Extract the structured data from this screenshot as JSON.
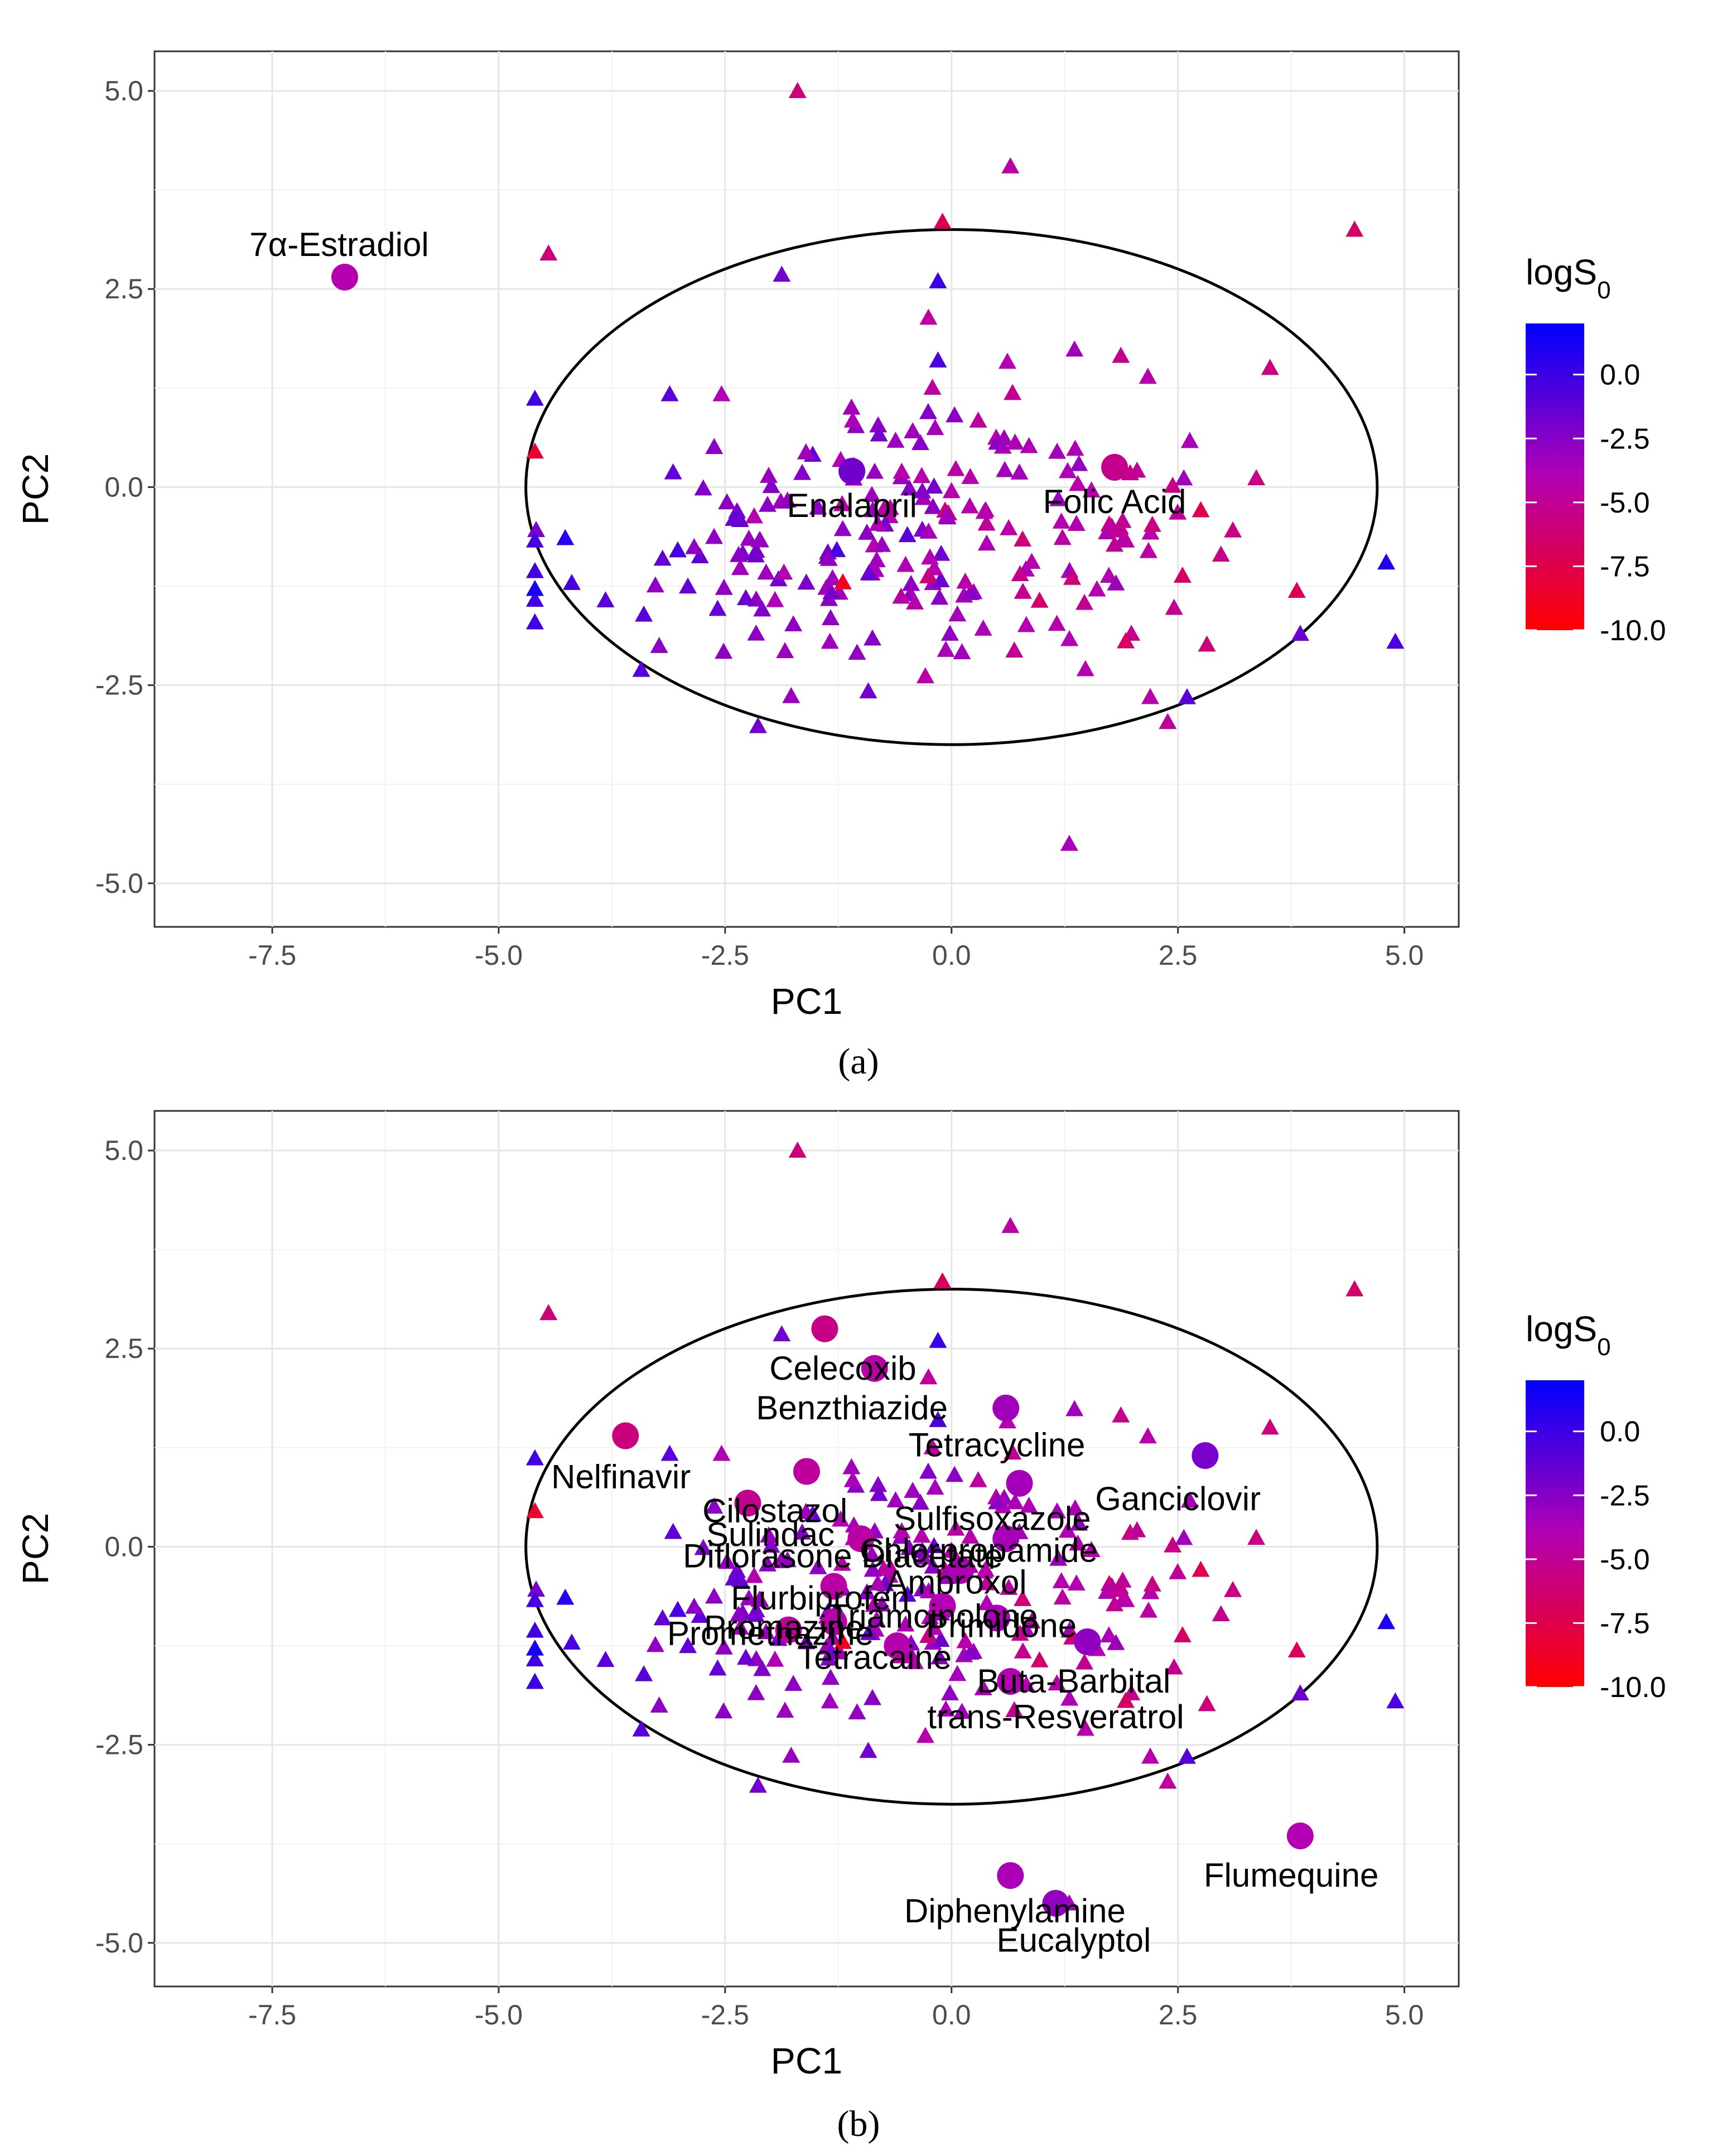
{
  "chart_data": [
    {
      "type": "scatter",
      "panel": "a",
      "caption": "(a)",
      "xlabel": "PC1",
      "ylabel": "PC2",
      "xlim": [
        -8.8,
        5.6
      ],
      "ylim": [
        -5.55,
        5.5
      ],
      "xticks": [
        -7.5,
        -5.0,
        -2.5,
        0.0,
        2.5,
        5.0
      ],
      "xtick_labels": [
        "-7.5",
        "-5.0",
        "-2.5",
        "0.0",
        "2.5",
        "5.0"
      ],
      "yticks": [
        -5.0,
        -2.5,
        0.0,
        2.5,
        5.0
      ],
      "ytick_labels": [
        "-5.0",
        "-2.5",
        "0.0",
        "2.5",
        "5.0"
      ],
      "ellipse": {
        "cx": 0.0,
        "cy": 0.0,
        "rx": 4.7,
        "ry": 3.25
      },
      "legend": {
        "title": "logS",
        "subscript": "0",
        "min": -10.0,
        "max": 2.0,
        "ticks": [
          0.0,
          -2.5,
          -5.0,
          -7.5,
          -10.0
        ],
        "tick_labels": [
          "0.0",
          "-2.5",
          "-5.0",
          "-7.5",
          "-10.0"
        ]
      },
      "colors": {
        "low": "#ff0000",
        "mid": "#b300b3",
        "high": "#0000ff"
      },
      "outliers": [
        {
          "label": "7α-Estradiol",
          "x": -6.7,
          "y": 2.65,
          "logS": -4.2,
          "label_pos": "above"
        },
        {
          "label": "Enalapril",
          "x": -1.1,
          "y": 0.2,
          "logS": -1.8,
          "label_pos": "below"
        },
        {
          "label": "Folic Acid",
          "x": 1.8,
          "y": 0.25,
          "logS": -5.3,
          "label_pos": "below"
        }
      ]
    },
    {
      "type": "scatter",
      "panel": "b",
      "caption": "(b)",
      "xlabel": "PC1",
      "ylabel": "PC2",
      "xlim": [
        -8.8,
        5.6
      ],
      "ylim": [
        -5.55,
        5.5
      ],
      "xticks": [
        -7.5,
        -5.0,
        -2.5,
        0.0,
        2.5,
        5.0
      ],
      "xtick_labels": [
        "-7.5",
        "-5.0",
        "-2.5",
        "0.0",
        "2.5",
        "5.0"
      ],
      "yticks": [
        -5.0,
        -2.5,
        0.0,
        2.5,
        5.0
      ],
      "ytick_labels": [
        "-5.0",
        "-2.5",
        "0.0",
        "2.5",
        "5.0"
      ],
      "ellipse": {
        "cx": 0.0,
        "cy": 0.0,
        "rx": 4.7,
        "ry": 3.25
      },
      "legend": {
        "title": "logS",
        "subscript": "0",
        "min": -10.0,
        "max": 2.0,
        "ticks": [
          0.0,
          -2.5,
          -5.0,
          -7.5,
          -10.0
        ],
        "tick_labels": [
          "0.0",
          "-2.5",
          "-5.0",
          "-7.5",
          "-10.0"
        ]
      },
      "colors": {
        "low": "#ff0000",
        "mid": "#b300b3",
        "high": "#0000ff"
      },
      "outliers": [
        {
          "label": "Celecoxib",
          "x": -1.4,
          "y": 2.75,
          "logS": -5.5,
          "lx": -1.2,
          "ly": 2.25
        },
        {
          "label": "Benzthiazide",
          "x": -0.85,
          "y": 2.25,
          "logS": -4.4,
          "lx": -1.1,
          "ly": 1.75
        },
        {
          "label": "Tetracycline",
          "x": 0.6,
          "y": 1.75,
          "logS": -3.4,
          "lx": 0.5,
          "ly": 1.28
        },
        {
          "label": "Nelfinavir",
          "x": -3.6,
          "y": 1.4,
          "logS": -5.8,
          "lx": -3.65,
          "ly": 0.88
        },
        {
          "label": "Ganciclovir",
          "x": 2.8,
          "y": 1.15,
          "logS": -2.1,
          "lx": 2.5,
          "ly": 0.6
        },
        {
          "label": "Cilostazol",
          "x": -2.25,
          "y": 0.55,
          "logS": -5.2,
          "lx": -1.95,
          "ly": 0.45
        },
        {
          "label": "Sulfisoxazole",
          "x": 0.75,
          "y": 0.8,
          "logS": -3.5,
          "lx": 0.45,
          "ly": 0.35
        },
        {
          "label": "Sulindac",
          "x": -1.6,
          "y": 0.95,
          "logS": -4.8,
          "lx": -2.0,
          "ly": 0.15
        },
        {
          "label": "Chlorpropamide",
          "x": 0.6,
          "y": 0.1,
          "logS": -3.6,
          "lx": 0.3,
          "ly": -0.05
        },
        {
          "label": "Diflorasone Diacetate",
          "x": -1.0,
          "y": 0.1,
          "logS": -4.6,
          "lx": -1.2,
          "ly": -0.12
        },
        {
          "label": "Ambroxol",
          "x": 0.1,
          "y": -0.3,
          "logS": -3.8,
          "lx": 0.05,
          "ly": -0.45
        },
        {
          "label": "Flurbiprofen",
          "x": -1.3,
          "y": -0.5,
          "logS": -4.5,
          "lx": -1.45,
          "ly": -0.65
        },
        {
          "label": "Triamcinolone",
          "x": -0.1,
          "y": -0.75,
          "logS": -4.0,
          "lx": -0.2,
          "ly": -0.88
        },
        {
          "label": "Primidone",
          "x": 0.5,
          "y": -0.9,
          "logS": -3.7,
          "lx": 0.55,
          "ly": -1.0
        },
        {
          "label": "Promazine",
          "x": -1.3,
          "y": -0.95,
          "logS": -4.4,
          "lx": -1.85,
          "ly": -1.02
        },
        {
          "label": "Promethazine",
          "x": -1.8,
          "y": -1.05,
          "logS": -4.7,
          "lx": -2.0,
          "ly": -1.1
        },
        {
          "label": "Tetracaine",
          "x": -0.6,
          "y": -1.25,
          "logS": -4.2,
          "lx": -0.85,
          "ly": -1.4
        },
        {
          "label": "Buta-Barbital",
          "x": 1.5,
          "y": -1.2,
          "logS": -2.9,
          "lx": 1.35,
          "ly": -1.7
        },
        {
          "label": "trans-Resveratrol",
          "x": 0.65,
          "y": -1.7,
          "logS": -4.0,
          "lx": 1.15,
          "ly": -2.15
        },
        {
          "label": "Flumequine",
          "x": 3.85,
          "y": -3.65,
          "logS": -4.0,
          "lx": 3.75,
          "ly": -4.15
        },
        {
          "label": "Diphenylamine",
          "x": 0.65,
          "y": -4.15,
          "logS": -3.8,
          "lx": 0.7,
          "ly": -4.6
        },
        {
          "label": "Eucalyptol",
          "x": 1.15,
          "y": -4.5,
          "logS": -2.9,
          "lx": 1.35,
          "ly": -4.97
        }
      ]
    }
  ]
}
